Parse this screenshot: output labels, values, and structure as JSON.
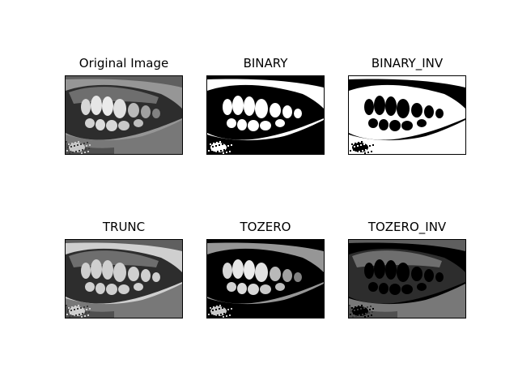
{
  "figure": {
    "panels": [
      {
        "title": "Original Image",
        "mode": "original"
      },
      {
        "title": "BINARY",
        "mode": "binary"
      },
      {
        "title": "BINARY_INV",
        "mode": "binary_inv"
      },
      {
        "title": "TRUNC",
        "mode": "trunc"
      },
      {
        "title": "TOZERO",
        "mode": "tozero"
      },
      {
        "title": "TOZERO_INV",
        "mode": "tozero_inv"
      }
    ]
  }
}
